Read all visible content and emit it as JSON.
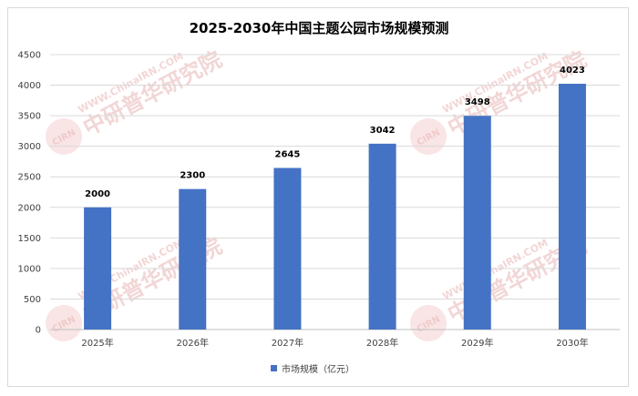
{
  "chart_data": {
    "type": "bar",
    "title": "2025-2030年中国主题公园市场规模预测",
    "categories": [
      "2025年",
      "2026年",
      "2027年",
      "2028年",
      "2029年",
      "2030年"
    ],
    "series": [
      {
        "name": "市场规模（亿元）",
        "values": [
          2000,
          2300,
          2645,
          3042,
          3498,
          4023
        ],
        "color": "#4472c4"
      }
    ],
    "ylim": [
      0,
      4500
    ],
    "yticks": [
      0,
      500,
      1000,
      1500,
      2000,
      2500,
      3000,
      3500,
      4000,
      4500
    ],
    "grid": true,
    "legend_position": "bottom",
    "data_labels": true
  },
  "watermark": {
    "url_text": "WWW.ChinaIRN.COM",
    "brand_text": "中研普华研究院",
    "logo_text": "CIRN"
  }
}
